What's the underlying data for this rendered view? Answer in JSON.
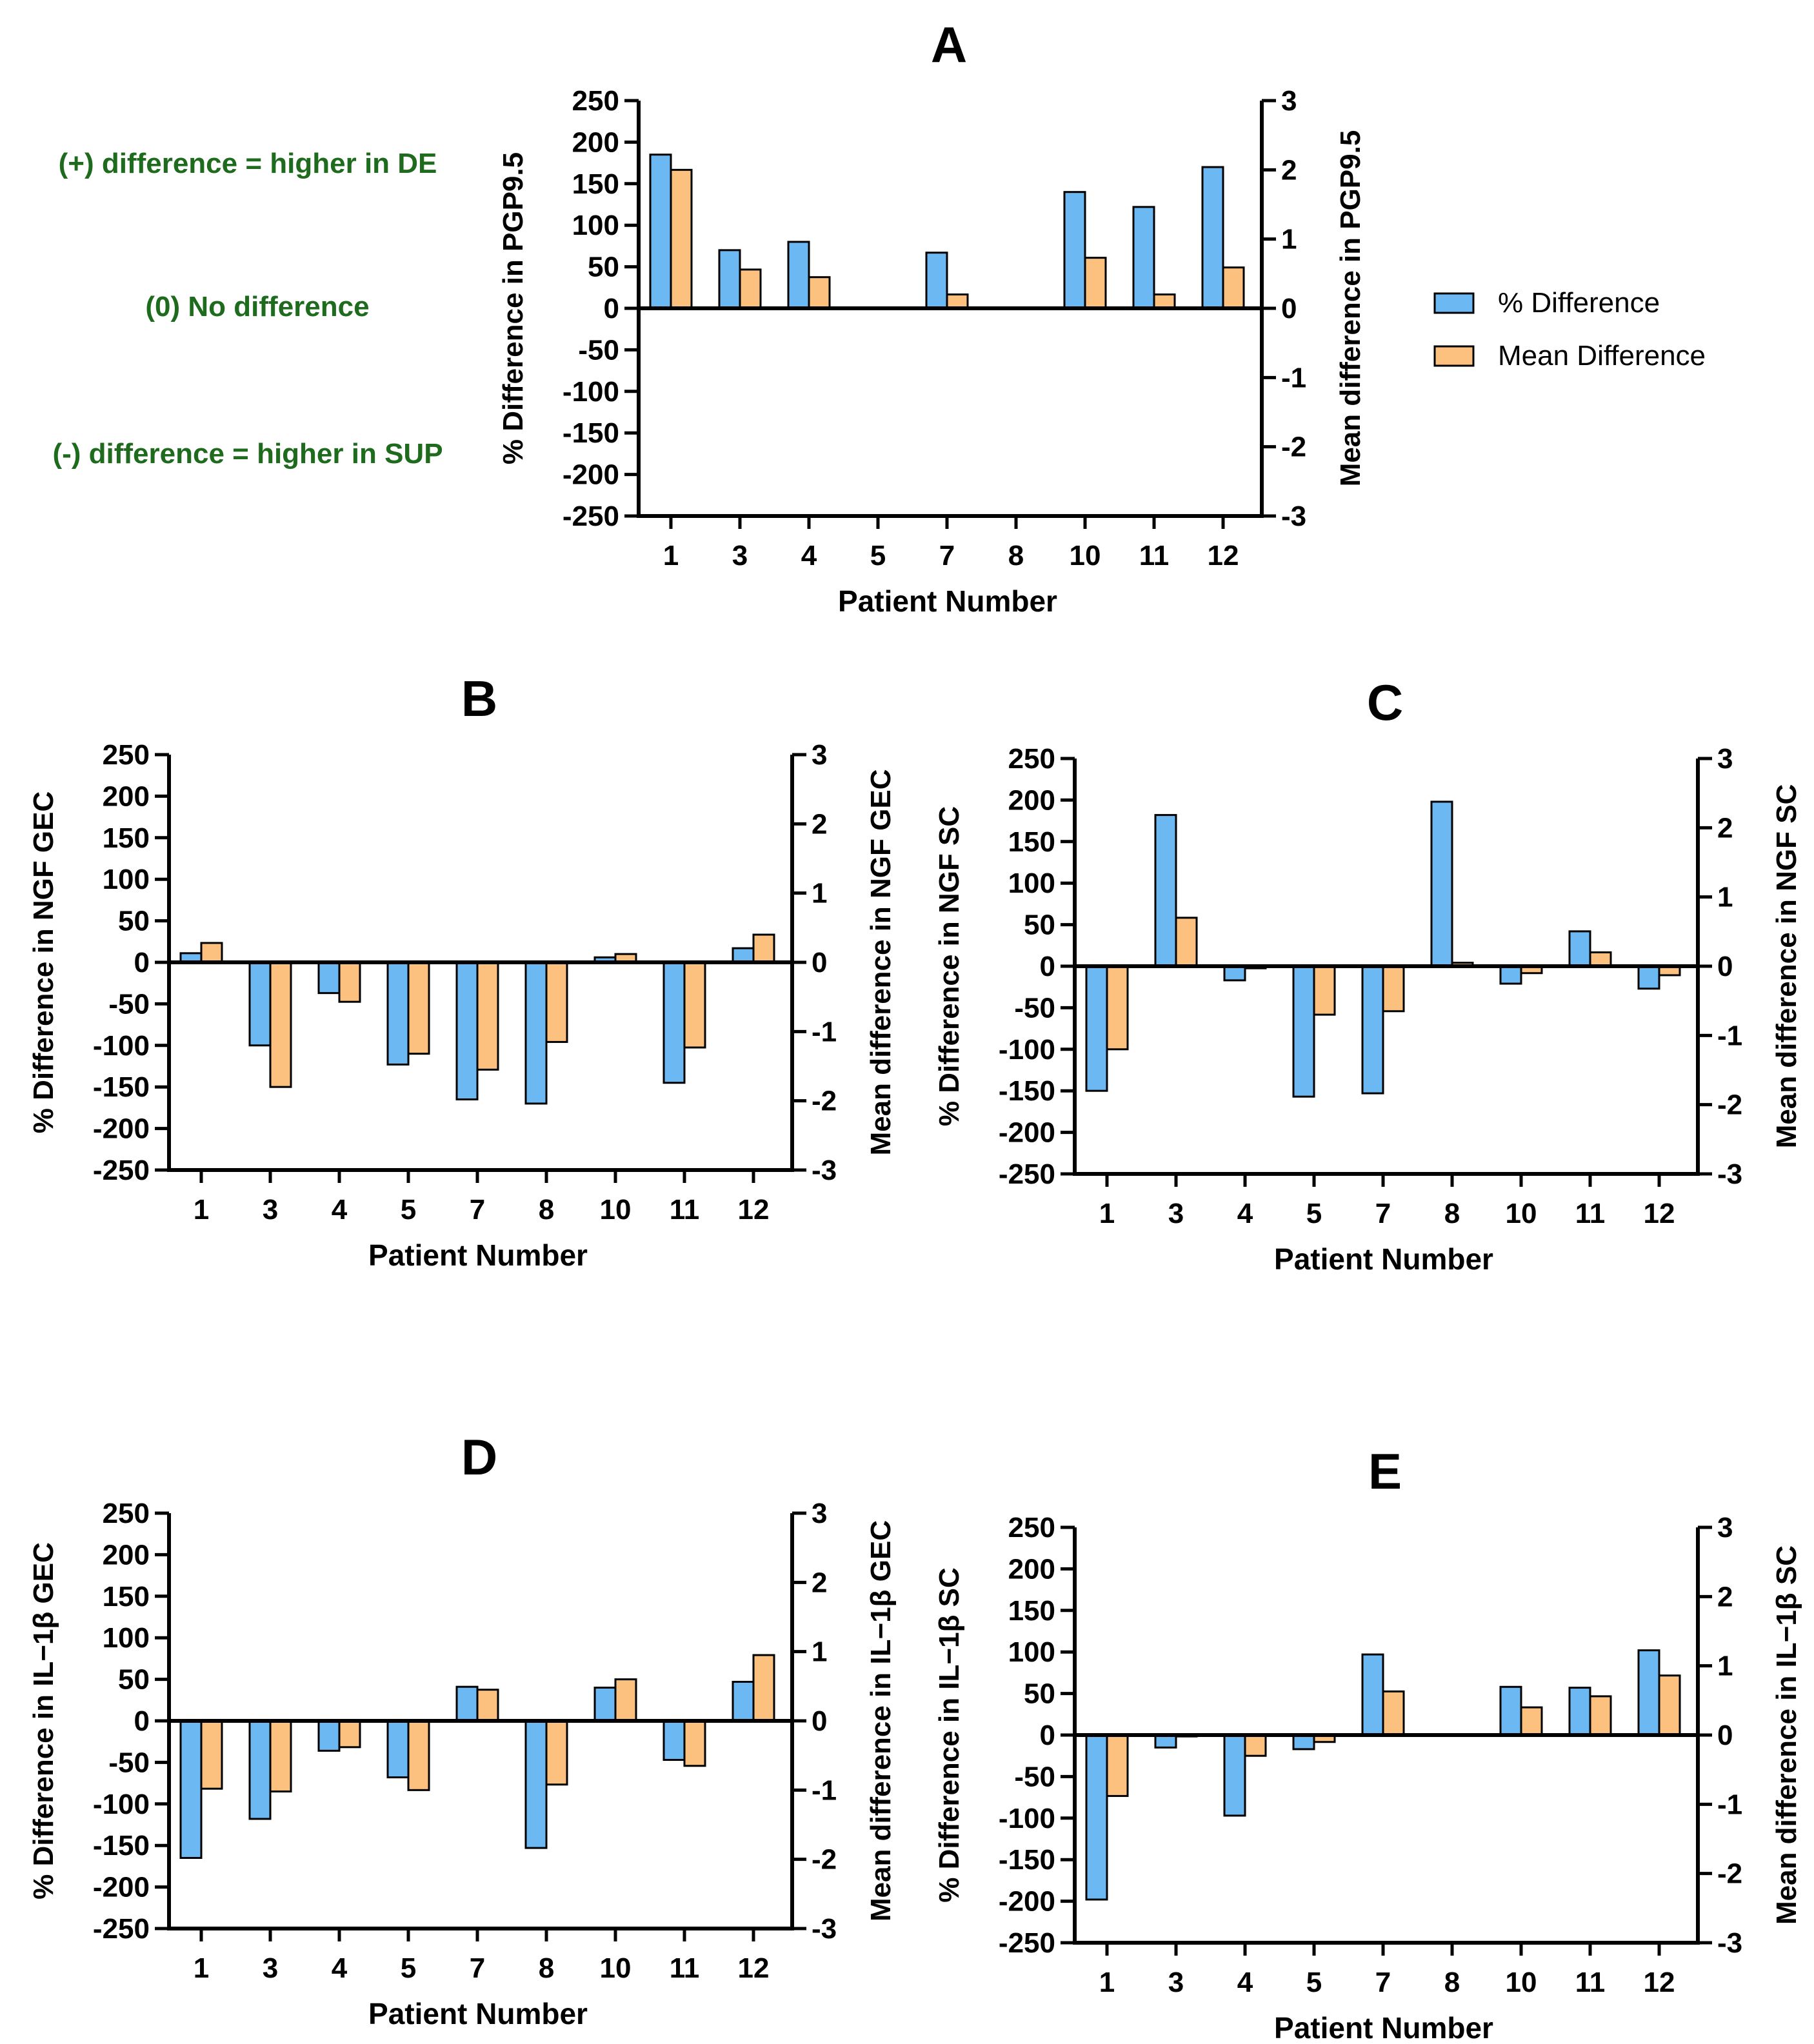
{
  "figure": {
    "annotations": [
      "(+) difference = higher in DE",
      "(0) No difference",
      "(-) difference = higher in SUP"
    ],
    "annotation_color": "#1e6b1e",
    "legend": [
      {
        "label": "% Difference",
        "color": "#6cb8f2"
      },
      {
        "label": "Mean Difference",
        "color": "#fcc17f"
      }
    ]
  },
  "chart_data": [
    {
      "type": "bar",
      "panel": "A",
      "title": "A",
      "xlabel": "Patient Number",
      "ylabel": "% Difference in PGP9.5",
      "ylabel_right": "Mean difference in PGP9.5",
      "categories": [
        "1",
        "3",
        "4",
        "5",
        "7",
        "8",
        "10",
        "11",
        "12"
      ],
      "ylim": [
        -250,
        250
      ],
      "yticks": [
        250,
        200,
        150,
        100,
        50,
        0,
        -50,
        -100,
        -150,
        -200,
        -250
      ],
      "ylim_right": [
        -3,
        3
      ],
      "yticks_right": [
        3,
        2,
        1,
        0,
        -1,
        -2,
        -3
      ],
      "series": [
        {
          "name": "% Difference",
          "axis": "left",
          "values": [
            185,
            70,
            80,
            0,
            67,
            0,
            140,
            122,
            170
          ]
        },
        {
          "name": "Mean Difference",
          "axis": "right",
          "values": [
            2.0,
            0.56,
            0.45,
            0,
            0.2,
            0,
            0.73,
            0.2,
            0.59
          ]
        }
      ]
    },
    {
      "type": "bar",
      "panel": "B",
      "title": "B",
      "xlabel": "Patient Number",
      "ylabel": "% Difference in NGF GEC",
      "ylabel_right": "Mean difference in NGF GEC",
      "categories": [
        "1",
        "3",
        "4",
        "5",
        "7",
        "8",
        "10",
        "11",
        "12"
      ],
      "ylim": [
        -250,
        250
      ],
      "yticks": [
        250,
        200,
        150,
        100,
        50,
        0,
        -50,
        -100,
        -150,
        -200,
        -250
      ],
      "ylim_right": [
        -3,
        3
      ],
      "yticks_right": [
        3,
        2,
        1,
        0,
        -1,
        -2,
        -3
      ],
      "series": [
        {
          "name": "% Difference",
          "axis": "left",
          "values": [
            11,
            -100,
            -37,
            -123,
            -165,
            -170,
            6,
            -145,
            17
          ]
        },
        {
          "name": "Mean Difference",
          "axis": "right",
          "values": [
            0.28,
            -1.8,
            -0.57,
            -1.32,
            -1.55,
            -1.15,
            0.12,
            -1.23,
            0.4
          ]
        }
      ]
    },
    {
      "type": "bar",
      "panel": "C",
      "title": "C",
      "xlabel": "Patient Number",
      "ylabel": "% Difference in NGF SC",
      "ylabel_right": "Mean difference in NGF SC",
      "categories": [
        "1",
        "3",
        "4",
        "5",
        "7",
        "8",
        "10",
        "11",
        "12"
      ],
      "ylim": [
        -250,
        250
      ],
      "yticks": [
        250,
        200,
        150,
        100,
        50,
        0,
        -50,
        -100,
        -150,
        -200,
        -250
      ],
      "ylim_right": [
        -3,
        3
      ],
      "yticks_right": [
        3,
        2,
        1,
        0,
        -1,
        -2,
        -3
      ],
      "series": [
        {
          "name": "% Difference",
          "axis": "left",
          "values": [
            -150,
            182,
            -17,
            -157,
            -153,
            198,
            -21,
            42,
            -27
          ]
        },
        {
          "name": "Mean Difference",
          "axis": "right",
          "values": [
            -1.2,
            0.7,
            -0.03,
            -0.7,
            -0.65,
            0.05,
            -0.1,
            0.2,
            -0.13
          ]
        }
      ]
    },
    {
      "type": "bar",
      "panel": "D",
      "title": "D",
      "xlabel": "Patient Number",
      "ylabel": "% Difference in IL−1β GEC",
      "ylabel_right": "Mean difference in IL−1β GEC",
      "categories": [
        "1",
        "3",
        "4",
        "5",
        "7",
        "8",
        "10",
        "11",
        "12"
      ],
      "ylim": [
        -250,
        250
      ],
      "yticks": [
        250,
        200,
        150,
        100,
        50,
        0,
        -50,
        -100,
        -150,
        -200,
        -250
      ],
      "ylim_right": [
        -3,
        3
      ],
      "yticks_right": [
        3,
        2,
        1,
        0,
        -1,
        -2,
        -3
      ],
      "series": [
        {
          "name": "% Difference",
          "axis": "left",
          "values": [
            -165,
            -118,
            -36,
            -68,
            41,
            -153,
            40,
            -47,
            47
          ]
        },
        {
          "name": "Mean Difference",
          "axis": "right",
          "values": [
            -0.98,
            -1.02,
            -0.38,
            -1.0,
            0.45,
            -0.92,
            0.6,
            -0.65,
            0.95
          ]
        }
      ]
    },
    {
      "type": "bar",
      "panel": "E",
      "title": "E",
      "xlabel": "Patient Number",
      "ylabel": "% Difference in IL−1β SC",
      "ylabel_right": "Mean difference in IL−1β SC",
      "categories": [
        "1",
        "3",
        "4",
        "5",
        "7",
        "8",
        "10",
        "11",
        "12"
      ],
      "ylim": [
        -250,
        250
      ],
      "yticks": [
        250,
        200,
        150,
        100,
        50,
        0,
        -50,
        -100,
        -150,
        -200,
        -250
      ],
      "ylim_right": [
        -3,
        3
      ],
      "yticks_right": [
        3,
        2,
        1,
        0,
        -1,
        -2,
        -3
      ],
      "series": [
        {
          "name": "% Difference",
          "axis": "left",
          "values": [
            -198,
            -15,
            -97,
            -17,
            97,
            0,
            58,
            57,
            102
          ]
        },
        {
          "name": "Mean Difference",
          "axis": "right",
          "values": [
            -0.88,
            -0.02,
            -0.3,
            -0.1,
            0.63,
            0,
            0.4,
            0.56,
            0.86
          ]
        }
      ]
    }
  ]
}
